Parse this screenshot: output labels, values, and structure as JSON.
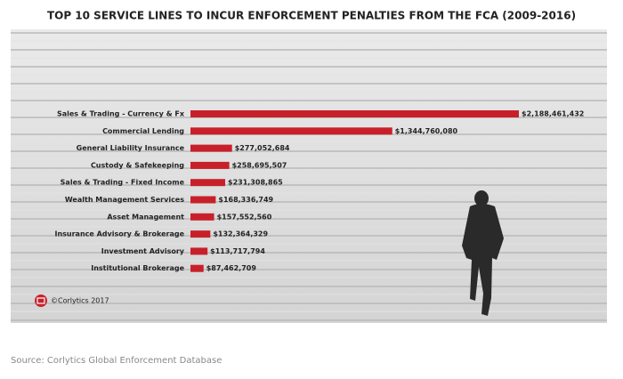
{
  "chart_data": {
    "type": "bar",
    "orientation": "horizontal",
    "title": "TOP 10 SERVICE LINES TO INCUR ENFORCEMENT PENALTIES FROM THE FCA (2009-2016)",
    "categories": [
      "Sales & Trading - Currency & Fx",
      "Commercial Lending",
      "General Liability Insurance",
      "Custody & Safekeeping",
      "Sales & Trading - Fixed Income",
      "Wealth Management Services",
      "Asset Management",
      "Insurance Advisory & Brokerage",
      "Investment Advisory",
      "Institutional Brokerage"
    ],
    "values": [
      2188461432,
      1344760080,
      277052684,
      258695507,
      231308865,
      168336749,
      157552560,
      132364329,
      113717794,
      87462709
    ],
    "value_labels": [
      "$2,188,461,432",
      "$1,344,760,080",
      "$277,052,684",
      "$258,695,507",
      "$231,308,865",
      "$168,336,749",
      "$157,552,560",
      "$132,364,329",
      "$113,717,794",
      "$87,462,709"
    ],
    "color": "#c8202a",
    "credit": "©Corlytics 2017",
    "source": "Source: Corlytics Global Enforcement Database"
  }
}
